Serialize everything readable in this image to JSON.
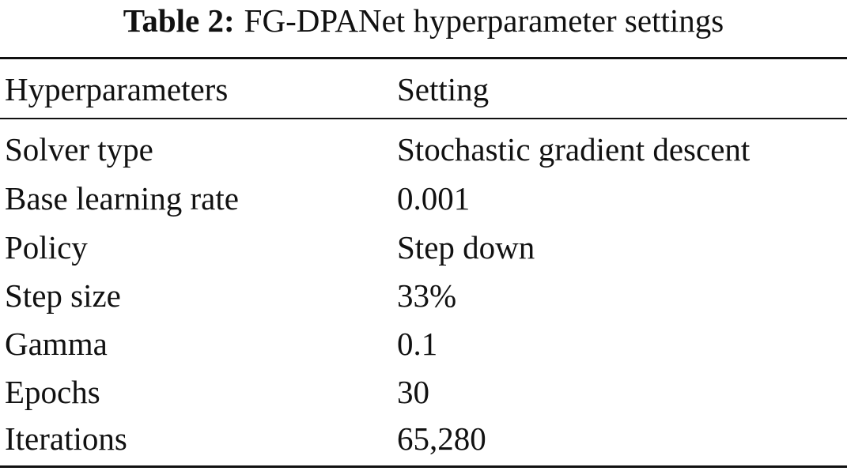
{
  "caption": {
    "label": "Table 2:",
    "text": "FG-DPANet hyperparameter settings"
  },
  "table": {
    "headers": [
      "Hyperparameters",
      "Setting"
    ],
    "rows": [
      [
        "Solver type",
        "Stochastic gradient descent"
      ],
      [
        "Base learning rate",
        "0.001"
      ],
      [
        "Policy",
        "Step down"
      ],
      [
        "Step size",
        "33%"
      ],
      [
        "Gamma",
        "0.1"
      ],
      [
        "Epochs",
        "30"
      ],
      [
        "Iterations",
        "65,280"
      ]
    ]
  }
}
